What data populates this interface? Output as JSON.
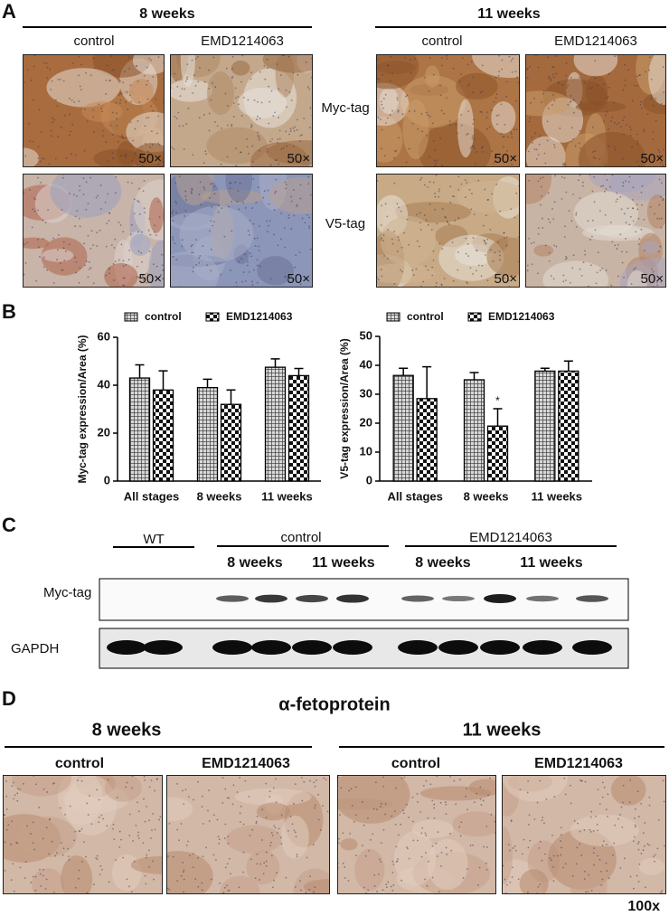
{
  "panel_a": {
    "label": "A",
    "groups": [
      {
        "title": "8 weeks",
        "columns": [
          "control",
          "EMD1214063"
        ]
      },
      {
        "title": "11 weeks",
        "columns": [
          "control",
          "EMD1214063"
        ]
      }
    ],
    "rows": [
      "Myc-tag",
      "V5-tag"
    ],
    "magnification": "50×"
  },
  "panel_b": {
    "label": "B"
  },
  "chart_data": [
    {
      "type": "bar",
      "y_label": "Myc-tag expression/Area (%)",
      "categories": [
        "All stages",
        "8 weeks",
        "11 weeks"
      ],
      "series": [
        {
          "name": "control",
          "pattern": "crosshatch",
          "values": [
            43,
            39,
            47.5
          ],
          "errors": [
            5.5,
            3.5,
            3.5
          ]
        },
        {
          "name": "EMD1214063",
          "pattern": "checker",
          "values": [
            38,
            32,
            44
          ],
          "errors": [
            8,
            6,
            3
          ]
        }
      ],
      "ylim": [
        0,
        60
      ],
      "yticks": [
        0,
        20,
        40,
        60
      ],
      "annotations": []
    },
    {
      "type": "bar",
      "y_label": "V5-tag expression/Area (%)",
      "categories": [
        "All stages",
        "8 weeks",
        "11 weeks"
      ],
      "series": [
        {
          "name": "control",
          "pattern": "crosshatch",
          "values": [
            36.5,
            35,
            38
          ],
          "errors": [
            2.5,
            2.5,
            1
          ]
        },
        {
          "name": "EMD1214063",
          "pattern": "checker",
          "values": [
            28.5,
            19,
            38
          ],
          "errors": [
            11,
            6,
            3.5
          ]
        }
      ],
      "ylim": [
        0,
        50
      ],
      "yticks": [
        0,
        10,
        20,
        30,
        40,
        50
      ],
      "annotations": [
        {
          "text": "*",
          "category": "8 weeks",
          "series": "EMD1214063"
        }
      ]
    }
  ],
  "panel_c": {
    "label": "C",
    "groups": [
      "WT",
      "control",
      "EMD1214063"
    ],
    "timepoints": [
      "8 weeks",
      "11 weeks",
      "8 weeks",
      "11 weeks"
    ],
    "rows": [
      "Myc-tag",
      "GAPDH"
    ]
  },
  "panel_d": {
    "label": "D",
    "title": "α-fetoprotein",
    "groups": [
      {
        "title": "8 weeks",
        "columns": [
          "control",
          "EMD1214063"
        ]
      },
      {
        "title": "11 weeks",
        "columns": [
          "control",
          "EMD1214063"
        ]
      }
    ],
    "magnification": "100x"
  }
}
